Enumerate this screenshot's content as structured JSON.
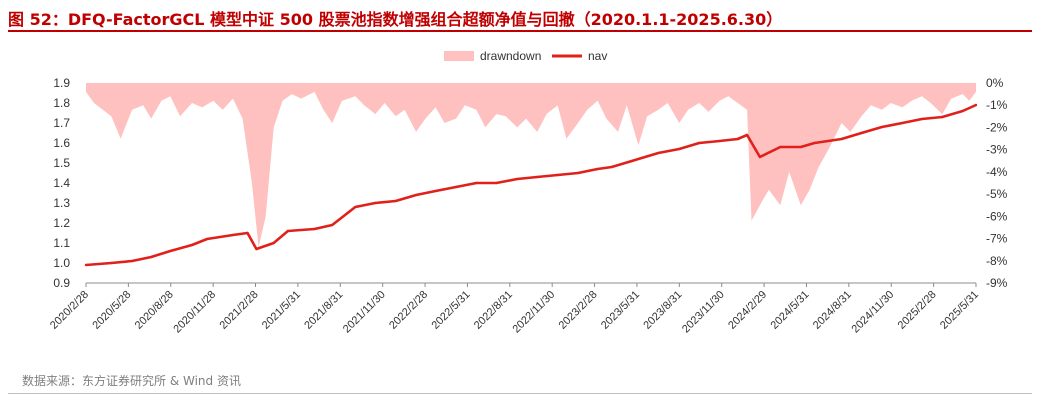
{
  "title": "图 52：DFQ-FactorGCL 模型中证 500 股票池指数增强组合超额净值与回撤（2020.1.1-2025.6.30）",
  "source": "数据来源：东方证券研究所 & Wind 资讯",
  "colors": {
    "title": "#c00000",
    "nav": "#e0201a",
    "drawdown": "#ffc0c0",
    "text": "#333333",
    "source": "#7f7f7f"
  },
  "chart_data": {
    "type": "line",
    "title": "",
    "xlabel": "",
    "ylabel": "",
    "legend": {
      "position": "top",
      "entries": [
        "drawndown",
        "nav"
      ]
    },
    "x_tick_labels": [
      "2020/2/28",
      "2020/5/28",
      "2020/8/28",
      "2020/11/28",
      "2021/2/28",
      "2021/5/31",
      "2021/8/31",
      "2021/11/30",
      "2022/2/28",
      "2022/5/31",
      "2022/8/31",
      "2022/11/30",
      "2023/2/28",
      "2023/5/31",
      "2023/8/31",
      "2023/11/30",
      "2024/2/29",
      "2024/5/31",
      "2024/8/31",
      "2024/11/30",
      "2025/2/28",
      "2025/5/31"
    ],
    "y_left": {
      "label": "",
      "ticks": [
        "0.9",
        "1.0",
        "1.1",
        "1.2",
        "1.3",
        "1.4",
        "1.5",
        "1.6",
        "1.7",
        "1.8",
        "1.9"
      ],
      "range": [
        0.9,
        1.9
      ]
    },
    "y_right": {
      "label": "",
      "ticks": [
        "0%",
        "-1%",
        "-2%",
        "-3%",
        "-4%",
        "-5%",
        "-6%",
        "-7%",
        "-8%",
        "-9%"
      ],
      "range": [
        -9,
        0
      ]
    },
    "series": [
      {
        "name": "nav",
        "type": "line",
        "axis": "left",
        "color": "#e0201a",
        "x": [
          "2020-01-02",
          "2020-02-28",
          "2020-04-15",
          "2020-05-28",
          "2020-07-10",
          "2020-08-28",
          "2020-10-01",
          "2020-11-28",
          "2020-12-31",
          "2021-01-20",
          "2021-02-28",
          "2021-04-01",
          "2021-05-31",
          "2021-07-10",
          "2021-08-31",
          "2021-10-15",
          "2021-11-30",
          "2022-01-15",
          "2022-02-28",
          "2022-04-15",
          "2022-05-31",
          "2022-07-15",
          "2022-08-31",
          "2022-10-15",
          "2022-11-30",
          "2023-01-15",
          "2023-02-28",
          "2023-04-01",
          "2023-05-31",
          "2023-07-15",
          "2023-08-31",
          "2023-10-15",
          "2023-11-30",
          "2024-01-10",
          "2024-01-31",
          "2024-02-29",
          "2024-04-15",
          "2024-05-31",
          "2024-07-01",
          "2024-08-31",
          "2024-10-15",
          "2024-11-30",
          "2025-01-15",
          "2025-02-28",
          "2025-04-15",
          "2025-05-31",
          "2025-06-30"
        ],
        "values": [
          0.99,
          1.0,
          1.01,
          1.03,
          1.06,
          1.09,
          1.12,
          1.14,
          1.15,
          1.07,
          1.1,
          1.16,
          1.17,
          1.19,
          1.28,
          1.3,
          1.31,
          1.34,
          1.36,
          1.38,
          1.4,
          1.4,
          1.42,
          1.43,
          1.44,
          1.45,
          1.47,
          1.48,
          1.52,
          1.55,
          1.57,
          1.6,
          1.61,
          1.62,
          1.64,
          1.53,
          1.58,
          1.58,
          1.6,
          1.62,
          1.65,
          1.68,
          1.7,
          1.72,
          1.73,
          1.76,
          1.79
        ]
      },
      {
        "name": "drawndown",
        "type": "area",
        "axis": "right",
        "color": "#ffc0c0",
        "x": [
          "2020-01-02",
          "2020-01-20",
          "2020-02-28",
          "2020-03-20",
          "2020-04-15",
          "2020-05-10",
          "2020-05-28",
          "2020-06-20",
          "2020-07-10",
          "2020-08-01",
          "2020-08-28",
          "2020-09-20",
          "2020-10-15",
          "2020-11-05",
          "2020-11-28",
          "2020-12-20",
          "2021-01-10",
          "2021-01-25",
          "2021-02-10",
          "2021-02-28",
          "2021-03-20",
          "2021-04-10",
          "2021-05-01",
          "2021-05-31",
          "2021-06-20",
          "2021-07-10",
          "2021-08-01",
          "2021-08-31",
          "2021-09-20",
          "2021-10-15",
          "2021-11-05",
          "2021-11-30",
          "2021-12-20",
          "2022-01-15",
          "2022-02-05",
          "2022-02-28",
          "2022-03-20",
          "2022-04-15",
          "2022-05-05",
          "2022-05-31",
          "2022-06-20",
          "2022-07-15",
          "2022-08-05",
          "2022-08-31",
          "2022-09-20",
          "2022-10-15",
          "2022-11-05",
          "2022-11-30",
          "2022-12-20",
          "2023-01-15",
          "2023-02-05",
          "2023-02-28",
          "2023-03-20",
          "2023-04-15",
          "2023-05-05",
          "2023-05-31",
          "2023-06-20",
          "2023-07-15",
          "2023-08-05",
          "2023-08-31",
          "2023-09-20",
          "2023-10-15",
          "2023-11-05",
          "2023-11-30",
          "2023-12-20",
          "2024-01-10",
          "2024-01-31",
          "2024-02-10",
          "2024-02-29",
          "2024-03-20",
          "2024-04-15",
          "2024-05-05",
          "2024-05-31",
          "2024-06-20",
          "2024-07-10",
          "2024-08-01",
          "2024-08-31",
          "2024-09-20",
          "2024-10-15",
          "2024-11-05",
          "2024-11-30",
          "2024-12-20",
          "2025-01-15",
          "2025-02-05",
          "2025-02-28",
          "2025-03-20",
          "2025-04-15",
          "2025-05-05",
          "2025-05-31",
          "2025-06-15",
          "2025-06-30"
        ],
        "values": [
          -0.4,
          -0.9,
          -1.5,
          -2.5,
          -1.2,
          -1.0,
          -1.6,
          -0.8,
          -0.6,
          -1.5,
          -0.9,
          -1.1,
          -0.8,
          -1.2,
          -0.7,
          -1.6,
          -4.5,
          -7.4,
          -6.0,
          -2.0,
          -0.8,
          -0.5,
          -0.7,
          -0.4,
          -1.2,
          -1.8,
          -0.8,
          -0.6,
          -1.0,
          -1.4,
          -0.9,
          -1.5,
          -1.2,
          -2.2,
          -1.6,
          -1.1,
          -1.8,
          -1.6,
          -1.0,
          -1.2,
          -2.0,
          -1.4,
          -1.5,
          -2.0,
          -1.6,
          -2.2,
          -1.4,
          -1.0,
          -2.5,
          -1.8,
          -1.2,
          -0.8,
          -1.6,
          -2.2,
          -1.0,
          -2.8,
          -1.5,
          -1.2,
          -0.9,
          -1.8,
          -1.2,
          -0.9,
          -1.3,
          -0.8,
          -0.6,
          -0.9,
          -1.2,
          -6.2,
          -5.5,
          -4.8,
          -5.5,
          -4.0,
          -5.5,
          -4.8,
          -3.8,
          -3.0,
          -1.8,
          -2.2,
          -1.5,
          -1.0,
          -1.2,
          -0.9,
          -1.1,
          -0.8,
          -0.6,
          -0.9,
          -1.4,
          -0.7,
          -0.5,
          -0.8,
          -0.4
        ]
      }
    ],
    "grid": false
  }
}
